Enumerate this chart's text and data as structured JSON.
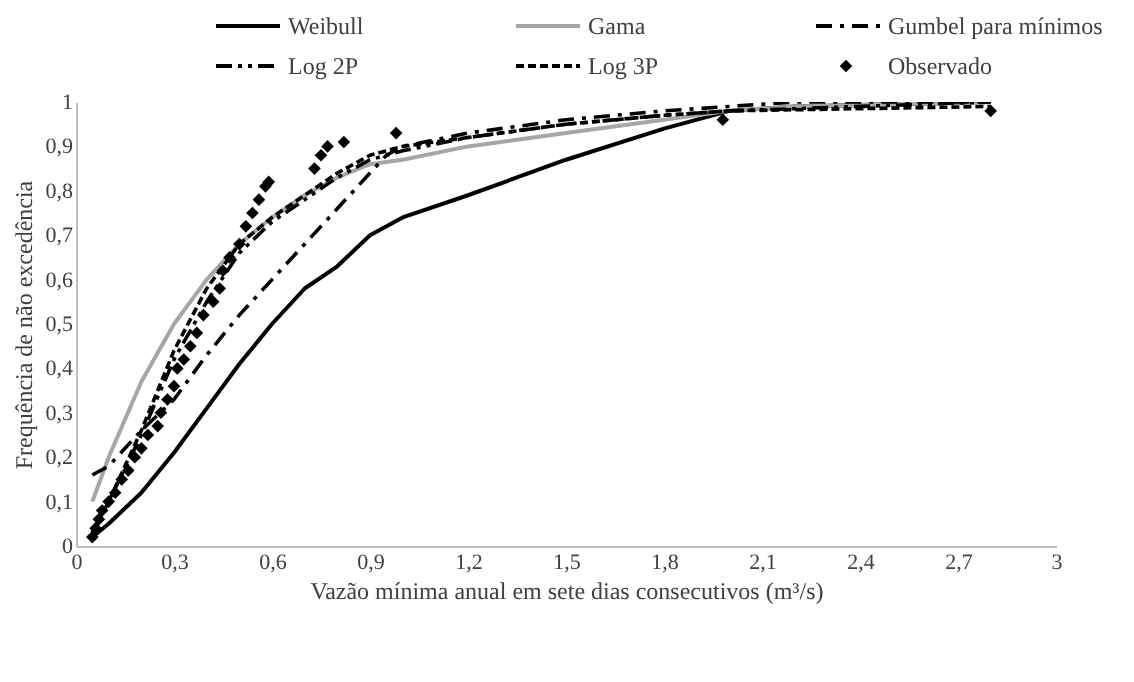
{
  "chart_data": {
    "type": "line",
    "xlabel": "Vazão mínima  anual em sete dias consecutivos (m³/s)",
    "ylabel": "Frequência de não excedência",
    "xlim": [
      0,
      3
    ],
    "ylim": [
      0,
      1
    ],
    "xticks": [
      0,
      {
        "value": 0.3,
        "label": "0,3"
      },
      {
        "value": 0.6,
        "label": "0,6"
      },
      {
        "value": 0.9,
        "label": "0,9"
      },
      {
        "value": 1.2,
        "label": "1,2"
      },
      {
        "value": 1.5,
        "label": "1,5"
      },
      {
        "value": 1.8,
        "label": "1,8"
      },
      {
        "value": 2.1,
        "label": "2,1"
      },
      {
        "value": 2.4,
        "label": "2,4"
      },
      {
        "value": 2.7,
        "label": "2,7"
      },
      3
    ],
    "yticks": [
      0,
      {
        "value": 0.1,
        "label": "0,1"
      },
      {
        "value": 0.2,
        "label": "0,2"
      },
      {
        "value": 0.3,
        "label": "0,3"
      },
      {
        "value": 0.4,
        "label": "0,4"
      },
      {
        "value": 0.5,
        "label": "0,5"
      },
      {
        "value": 0.6,
        "label": "0,6"
      },
      {
        "value": 0.7,
        "label": "0,7"
      },
      {
        "value": 0.8,
        "label": "0,8"
      },
      {
        "value": 0.9,
        "label": "0,9"
      },
      1
    ],
    "grid": false,
    "legend": "top",
    "series": [
      {
        "name": "Weibull",
        "color": "#000000",
        "line_style": "solid",
        "x": [
          0.05,
          0.1,
          0.2,
          0.3,
          0.4,
          0.5,
          0.6,
          0.7,
          0.8,
          0.9,
          1.0,
          1.2,
          1.5,
          1.8,
          2.0,
          2.2,
          2.8
        ],
        "values": [
          0.02,
          0.05,
          0.12,
          0.21,
          0.31,
          0.41,
          0.5,
          0.58,
          0.63,
          0.7,
          0.74,
          0.79,
          0.87,
          0.94,
          0.98,
          0.99,
          1.0
        ]
      },
      {
        "name": "Gama",
        "color": "#a6a6a6",
        "line_style": "solid",
        "x": [
          0.05,
          0.1,
          0.2,
          0.3,
          0.4,
          0.5,
          0.6,
          0.7,
          0.8,
          0.9,
          1.0,
          1.2,
          1.5,
          1.8,
          2.0,
          2.2,
          2.8
        ],
        "values": [
          0.1,
          0.2,
          0.37,
          0.5,
          0.6,
          0.68,
          0.74,
          0.79,
          0.83,
          0.86,
          0.87,
          0.9,
          0.93,
          0.96,
          0.98,
          0.99,
          1.0
        ]
      },
      {
        "name": "Gumbel para mínimos",
        "color": "#000000",
        "line_style": "dashdot",
        "x": [
          0.05,
          0.1,
          0.2,
          0.3,
          0.4,
          0.5,
          0.6,
          0.7,
          0.8,
          0.9,
          0.95,
          1.0,
          1.2,
          1.5,
          1.8,
          2.0,
          2.2,
          2.8
        ],
        "values": [
          0.16,
          0.18,
          0.26,
          0.33,
          0.43,
          0.52,
          0.6,
          0.68,
          0.76,
          0.84,
          0.88,
          0.9,
          0.93,
          0.96,
          0.98,
          0.99,
          1.0,
          1.0
        ]
      },
      {
        "name": "Log 2P",
        "color": "#000000",
        "line_style": "dashdotdot",
        "x": [
          0.05,
          0.1,
          0.2,
          0.3,
          0.4,
          0.5,
          0.6,
          0.7,
          0.8,
          0.9,
          1.0,
          1.2,
          1.5,
          1.8,
          2.0,
          2.8
        ],
        "values": [
          0.03,
          0.1,
          0.25,
          0.42,
          0.55,
          0.66,
          0.73,
          0.78,
          0.83,
          0.87,
          0.89,
          0.92,
          0.95,
          0.97,
          0.98,
          1.0
        ]
      },
      {
        "name": "Log 3P",
        "color": "#000000",
        "line_style": "dashed",
        "x": [
          0.05,
          0.1,
          0.2,
          0.3,
          0.4,
          0.5,
          0.6,
          0.7,
          0.8,
          0.9,
          1.0,
          1.2,
          1.5,
          1.8,
          2.0,
          2.8
        ],
        "values": [
          0.03,
          0.1,
          0.26,
          0.44,
          0.58,
          0.68,
          0.74,
          0.79,
          0.84,
          0.88,
          0.9,
          0.92,
          0.95,
          0.97,
          0.98,
          0.99
        ]
      },
      {
        "name": "Observado",
        "type": "scatter",
        "marker": "diamond",
        "color": "#000000",
        "x": [
          0.05,
          0.06,
          0.07,
          0.08,
          0.1,
          0.12,
          0.14,
          0.16,
          0.18,
          0.2,
          0.22,
          0.25,
          0.26,
          0.28,
          0.3,
          0.31,
          0.33,
          0.35,
          0.37,
          0.39,
          0.42,
          0.44,
          0.45,
          0.47,
          0.5,
          0.52,
          0.54,
          0.56,
          0.58,
          0.59,
          0.73,
          0.75,
          0.77,
          0.82,
          0.98,
          1.98,
          2.8
        ],
        "values": [
          0.02,
          0.04,
          0.06,
          0.08,
          0.1,
          0.12,
          0.15,
          0.17,
          0.2,
          0.22,
          0.25,
          0.27,
          0.3,
          0.33,
          0.36,
          0.4,
          0.42,
          0.45,
          0.48,
          0.52,
          0.55,
          0.58,
          0.62,
          0.65,
          0.68,
          0.72,
          0.75,
          0.78,
          0.81,
          0.82,
          0.85,
          0.88,
          0.9,
          0.91,
          0.93,
          0.96,
          0.98
        ]
      }
    ]
  }
}
